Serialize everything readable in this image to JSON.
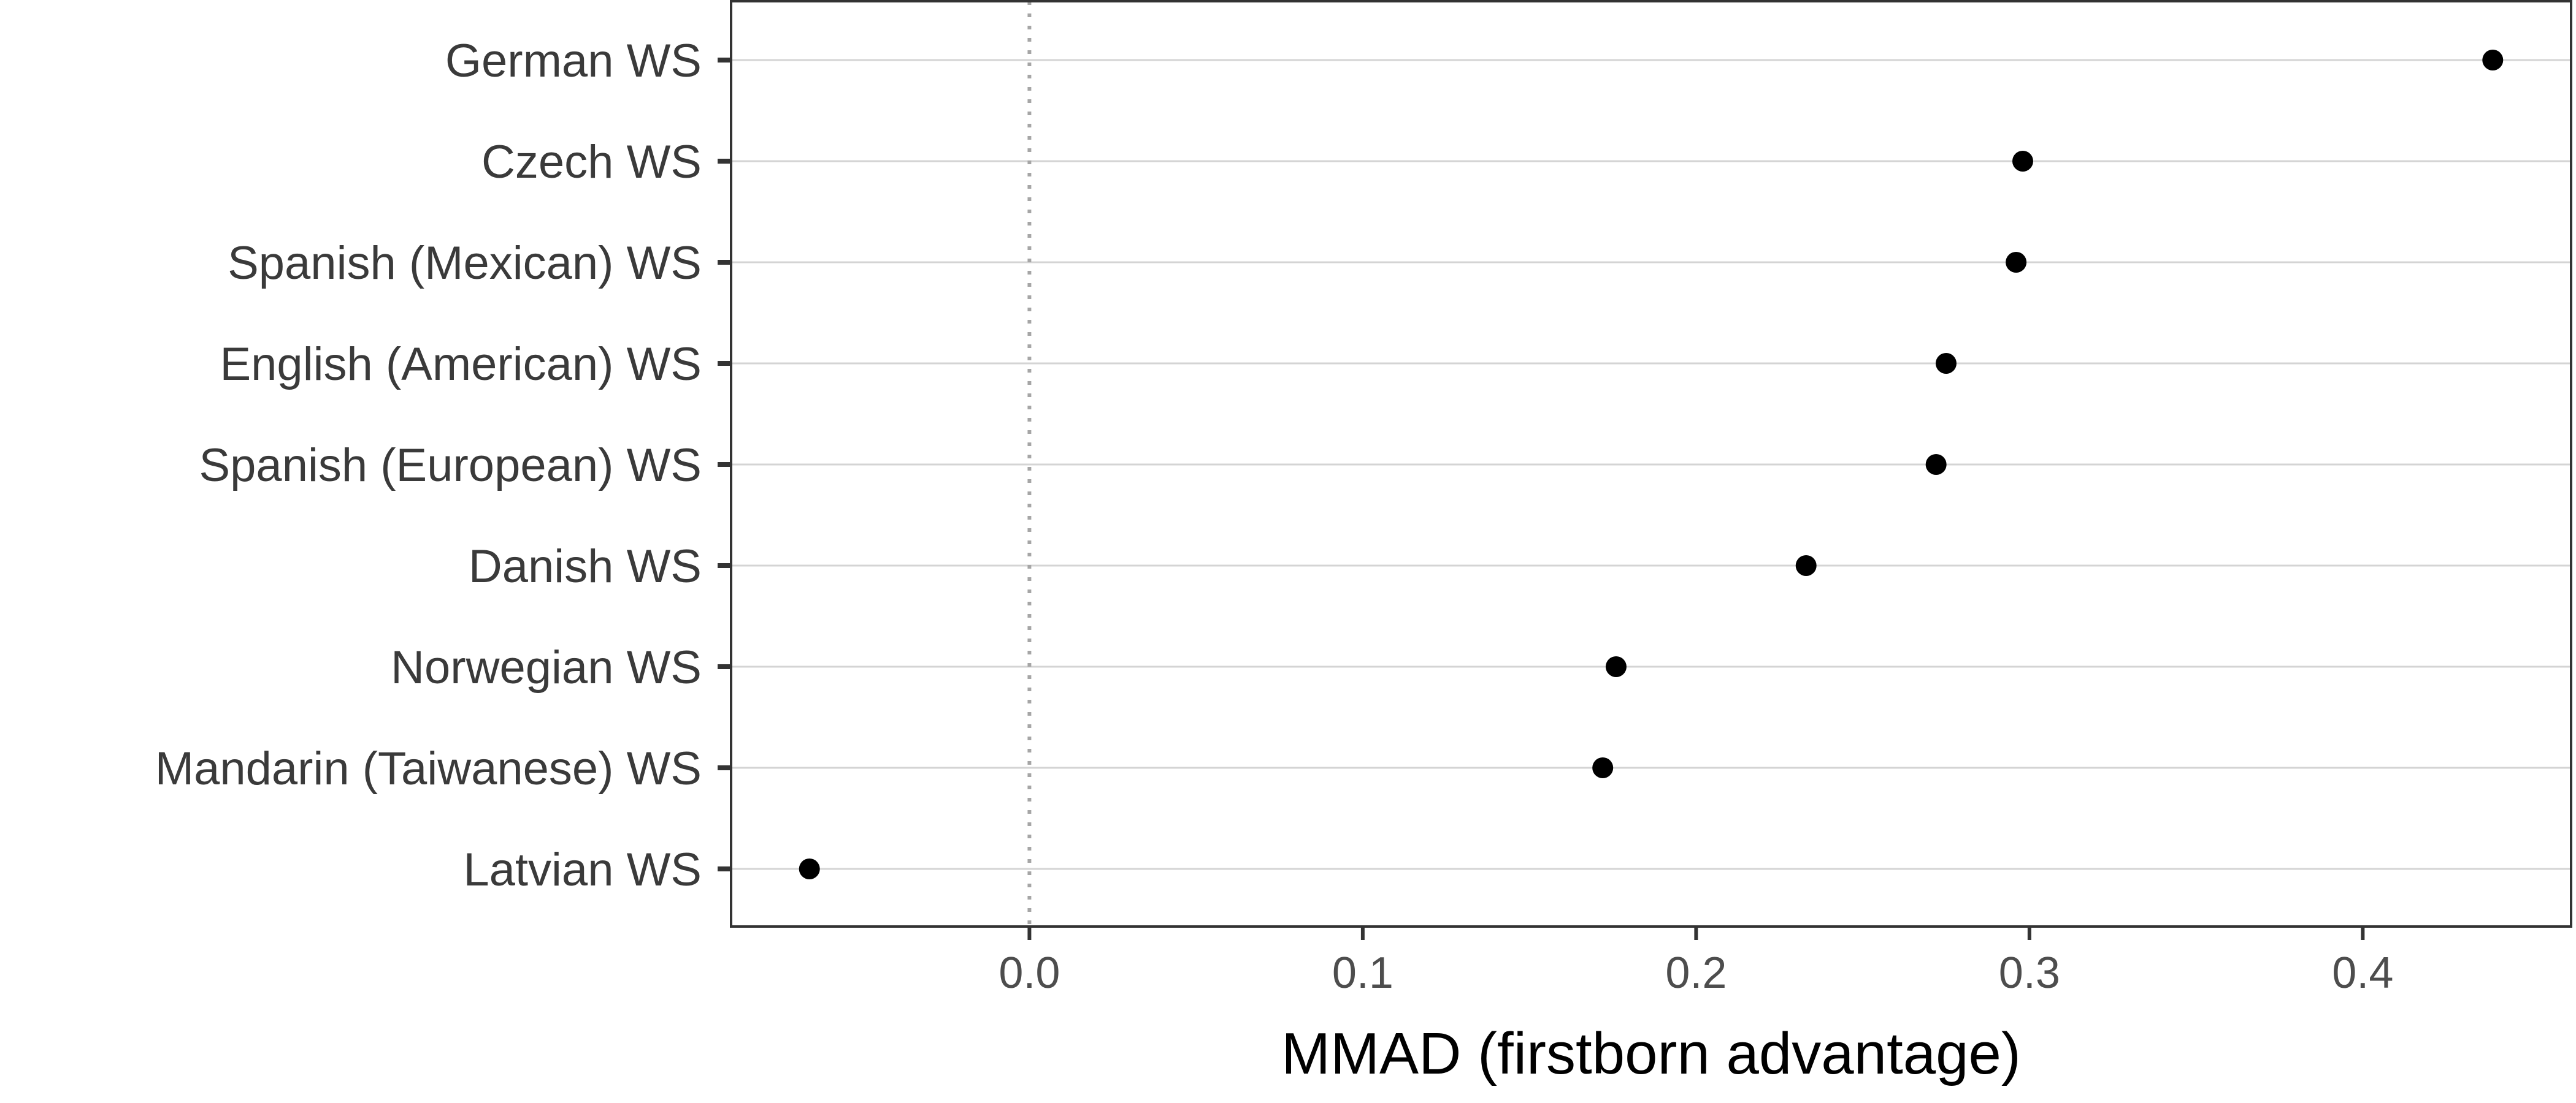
{
  "chart_data": {
    "type": "scatter",
    "title": "",
    "xlabel": "MMAD (firstborn advantage)",
    "ylabel": "",
    "categories": [
      "German WS",
      "Czech WS",
      "Spanish (Mexican) WS",
      "English (American) WS",
      "Spanish (European) WS",
      "Danish WS",
      "Norwegian WS",
      "Mandarin (Taiwanese) WS",
      "Latvian WS"
    ],
    "values": [
      0.439,
      0.298,
      0.296,
      0.275,
      0.272,
      0.233,
      0.176,
      0.172,
      -0.066
    ],
    "xlim": [
      -0.0895,
      0.4625
    ],
    "xticks": [
      0.0,
      0.1,
      0.2,
      0.3,
      0.4
    ],
    "xtick_labels": [
      "0.0",
      "0.1",
      "0.2",
      "0.3",
      "0.4"
    ],
    "reference_line": 0.0,
    "grid": "horizontal",
    "legend": "none"
  }
}
